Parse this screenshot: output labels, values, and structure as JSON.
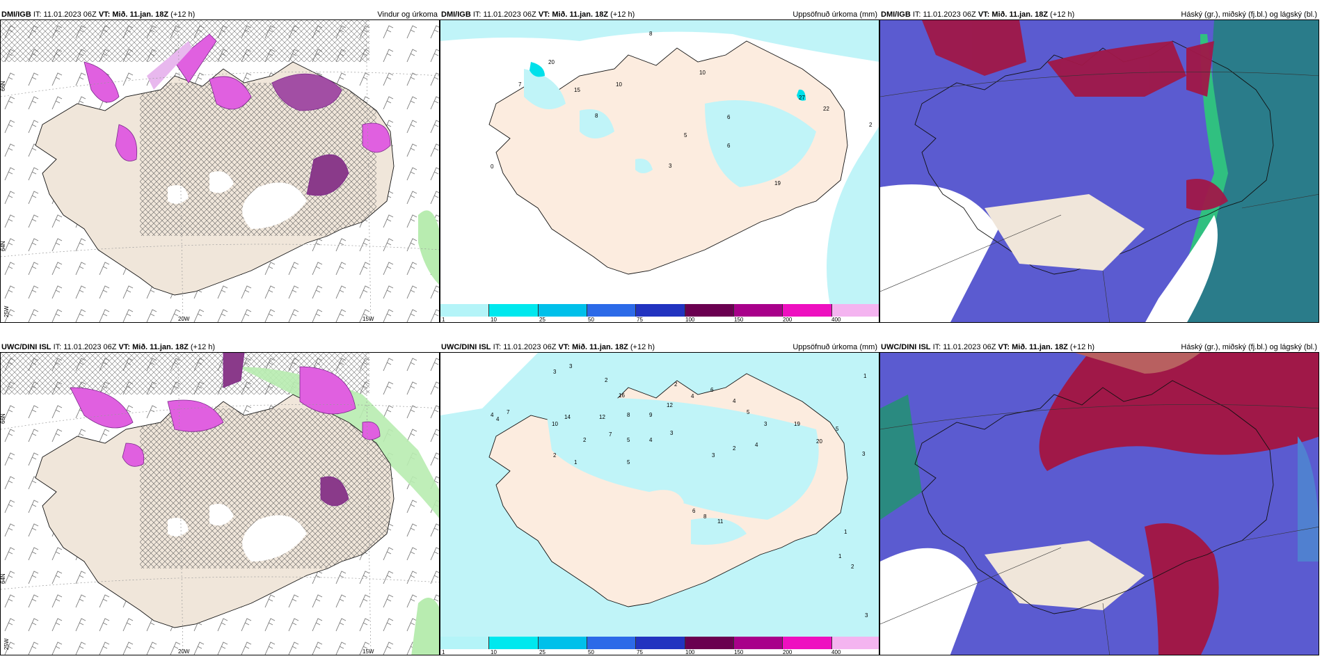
{
  "panels": [
    {
      "model": "DMI/IGB",
      "it": "IT: 11.01.2023 06Z",
      "vt_label": "VT:",
      "vt": "Mið. 11.jan. 18Z",
      "lead": "(+12 h)",
      "product": "Vindur og úrkoma"
    },
    {
      "model": "DMI/IGB",
      "it": "IT: 11.01.2023 06Z",
      "vt_label": "VT:",
      "vt": "Mið. 11.jan. 18Z",
      "lead": "(+12 h)",
      "product": "Uppsöfnuð úrkoma (mm)"
    },
    {
      "model": "DMI/IGB",
      "it": "IT: 11.01.2023 06Z",
      "vt_label": "VT:",
      "vt": "Mið. 11.jan. 18Z",
      "lead": "(+12 h)",
      "product": "Háský (gr.), miðský (fj.bl.) og lágský (bl.)"
    },
    {
      "model": "UWC/DINI ISL",
      "it": "IT: 11.01.2023 06Z",
      "vt_label": "VT:",
      "vt": "Mið. 11.jan. 18Z",
      "lead": "(+12 h)",
      "product": ""
    },
    {
      "model": "UWC/DINI ISL",
      "it": "IT: 11.01.2023 06Z",
      "vt_label": "VT:",
      "vt": "Mið. 11.jan. 18Z",
      "lead": "(+12 h)",
      "product": "Uppsöfnuð úrkoma (mm)"
    },
    {
      "model": "UWC/DINI ISL",
      "it": "IT: 11.01.2023 06Z",
      "vt_label": "VT:",
      "vt": "Mið. 11.jan. 18Z",
      "lead": "(+12 h)",
      "product": "Háský (gr.), miðský (fj.bl.) og lágský (bl.)"
    }
  ],
  "grid_labels": {
    "lat66": "66N",
    "lat64": "64N",
    "lon20": "20W",
    "lon15": "15W",
    "lon25": "25W"
  },
  "colorbar": {
    "ticks": [
      "1",
      "10",
      "25",
      "50",
      "75",
      "100",
      "150",
      "200",
      "400"
    ],
    "colors": [
      "#b4f4f8",
      "#00e8ee",
      "#00c0ea",
      "#2c6ae8",
      "#2233c0",
      "#6a0050",
      "#a8008a",
      "#ee10c0",
      "#f4b4f0"
    ]
  },
  "precip_labels_top": [
    "8",
    "10",
    "10",
    "7",
    "20",
    "15",
    "8",
    "27",
    "22",
    "6",
    "5",
    "6",
    "3",
    "0",
    "2",
    "19"
  ],
  "precip_labels_bottom": [
    "3",
    "3",
    "2",
    "2",
    "1",
    "4",
    "4",
    "7",
    "10",
    "14",
    "12",
    "16",
    "8",
    "9",
    "12",
    "4",
    "6",
    "4",
    "5",
    "3",
    "2",
    "7",
    "5",
    "4",
    "3",
    "2",
    "1",
    "5",
    "3",
    "2",
    "4",
    "19",
    "20",
    "5",
    "3",
    "11",
    "6",
    "8",
    "1",
    "2",
    "1",
    "3"
  ],
  "colors": {
    "land": "#f0e6da",
    "sea": "#ffffff",
    "precip_light": "#c0f4f8",
    "mid_cloud": "#5b5bd0",
    "high_cloud": "#a01848",
    "low_cloud": "#2a7c8a",
    "shower": "#e060e0"
  }
}
